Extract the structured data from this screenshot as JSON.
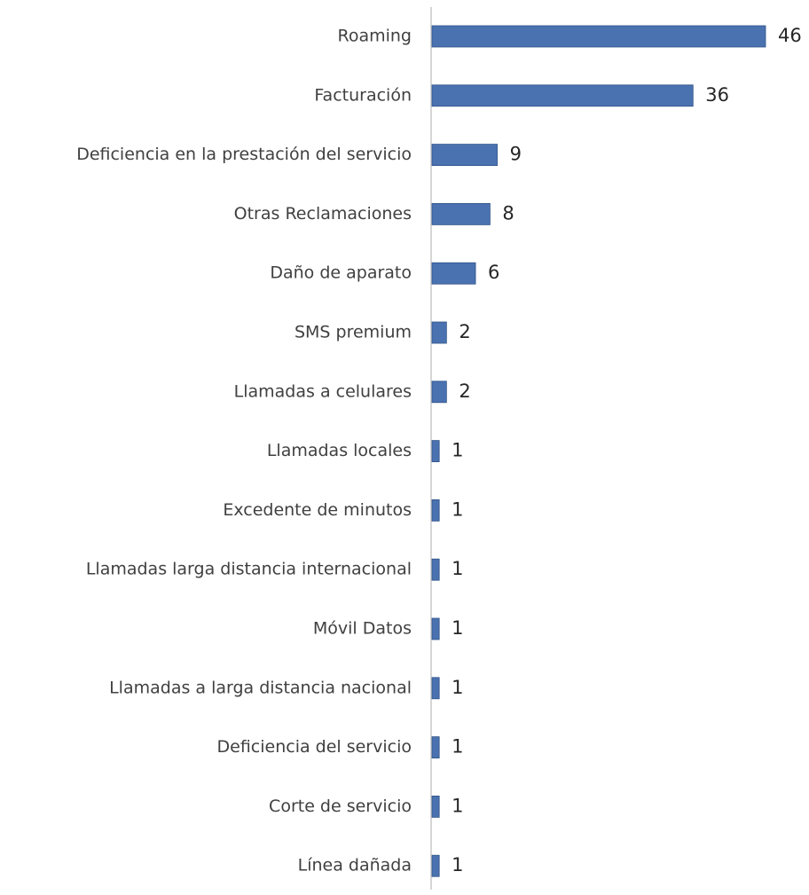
{
  "chart_data": {
    "type": "bar",
    "orientation": "horizontal",
    "categories": [
      "Roaming",
      "Facturación",
      "Deficiencia en la prestación del servicio",
      "Otras Reclamaciones",
      "Daño de aparato",
      "SMS premium",
      "Llamadas a celulares",
      "Llamadas locales",
      "Excedente de minutos",
      "Llamadas larga distancia internacional",
      "Móvil Datos",
      "Llamadas a larga distancia nacional",
      "Deficiencia del servicio",
      "Corte de servicio",
      "Línea dañada"
    ],
    "values": [
      46,
      36,
      9,
      8,
      6,
      2,
      2,
      1,
      1,
      1,
      1,
      1,
      1,
      1,
      1
    ],
    "xlim": [
      0,
      46
    ],
    "grid": false,
    "legend": "none",
    "bar_color": "#4a72b0",
    "bar_edge_color": "#2e5288",
    "axis_color": "#c8c8c8"
  }
}
